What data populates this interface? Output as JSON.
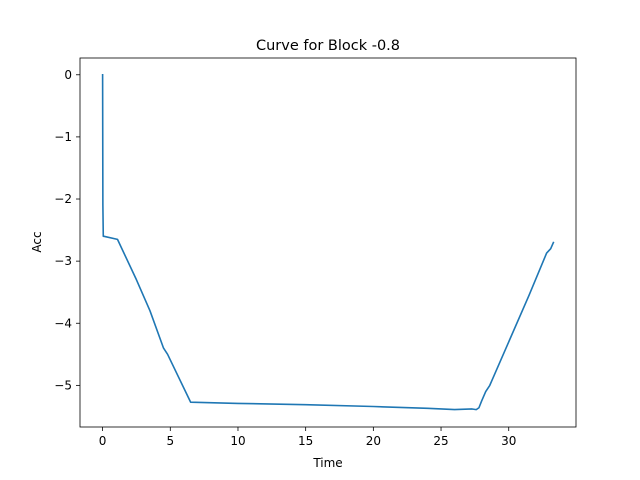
{
  "chart_data": {
    "type": "line",
    "title": "Curve for Block -0.8",
    "xlabel": "Time",
    "ylabel": "Acc",
    "xlim": [
      -1.67,
      34.97
    ],
    "ylim": [
      -5.67,
      0.27
    ],
    "xticks": [
      0,
      5,
      10,
      15,
      20,
      25,
      30
    ],
    "yticks": [
      0,
      -1,
      -2,
      -3,
      -4,
      -5
    ],
    "grid": false,
    "colors": {
      "line": "#1f77b4"
    },
    "series": [
      {
        "x": [
          0,
          0.02,
          0.05,
          0.1,
          1.1,
          2.5,
          3.5,
          4.5,
          4.8,
          6.5,
          10,
          15,
          20,
          24,
          26,
          27.3,
          27.6,
          27.8,
          28.0,
          28.3,
          28.6,
          30,
          31.5,
          32.8,
          33.1,
          33.3
        ],
        "y": [
          0,
          -2.1,
          -2.6,
          -2.6,
          -2.65,
          -3.3,
          -3.8,
          -4.4,
          -4.5,
          -5.27,
          -5.29,
          -5.31,
          -5.34,
          -5.37,
          -5.39,
          -5.38,
          -5.39,
          -5.36,
          -5.25,
          -5.1,
          -5.0,
          -4.3,
          -3.55,
          -2.87,
          -2.8,
          -2.7
        ]
      }
    ]
  }
}
